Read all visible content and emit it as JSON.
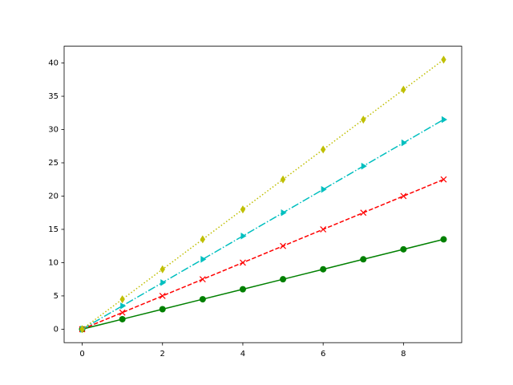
{
  "chart_data": {
    "type": "line",
    "x": [
      0,
      1,
      2,
      3,
      4,
      5,
      6,
      7,
      8,
      9
    ],
    "series": [
      {
        "color": "#008000",
        "marker": "circle",
        "linestyle": "solid",
        "values": [
          0,
          1.5,
          3,
          4.5,
          6,
          7.5,
          9,
          10.5,
          12,
          13.5
        ]
      },
      {
        "color": "#ff0000",
        "marker": "x",
        "linestyle": "dashed",
        "values": [
          0,
          2.5,
          5,
          7.5,
          10,
          12.5,
          15,
          17.5,
          20,
          22.5
        ]
      },
      {
        "color": "#00bfbf",
        "marker": "triangle-right",
        "linestyle": "dashdot",
        "values": [
          0,
          3.5,
          7,
          10.5,
          14,
          17.5,
          21,
          24.5,
          28,
          31.5
        ]
      },
      {
        "color": "#bfbf00",
        "marker": "thin-diamond",
        "linestyle": "dotted",
        "values": [
          0,
          4.5,
          9,
          13.5,
          18,
          22.5,
          27,
          31.5,
          36,
          40.5
        ]
      }
    ],
    "xlim": [
      -0.45,
      9.45
    ],
    "xticks": [
      0,
      2,
      4,
      6,
      8
    ],
    "ylim": [
      -2.025,
      42.525
    ],
    "yticks": [
      0,
      5,
      10,
      15,
      20,
      25,
      30,
      35,
      40
    ],
    "grid": false
  }
}
